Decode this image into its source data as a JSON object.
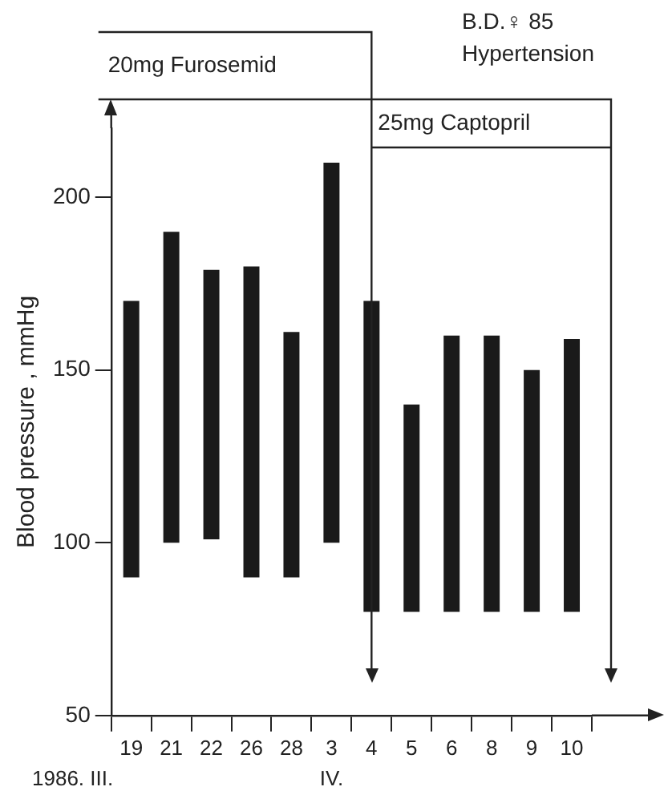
{
  "chart_data": {
    "type": "bar",
    "ylabel": "Blood pressure , mmHg",
    "categories": [
      "19",
      "21",
      "22",
      "26",
      "28",
      "3",
      "4",
      "5",
      "6",
      "8",
      "9",
      "10"
    ],
    "values": [
      80,
      90,
      78,
      90,
      71,
      110,
      90,
      60,
      80,
      80,
      70,
      79
    ],
    "base": [
      90,
      100,
      101,
      90,
      90,
      100,
      80,
      80,
      80,
      80,
      80,
      80
    ],
    "color": "#1a1a1a",
    "ylim": [
      50,
      220
    ],
    "yticks": [
      50,
      100,
      150,
      200
    ],
    "grid": false,
    "legend": false,
    "ref_lines": [
      {
        "axis": "x",
        "value": "4",
        "label": "25mg Captopril"
      }
    ],
    "annotations": [
      "B.D.♀ 85",
      "Hypertension",
      "20mg Furosemid",
      "1986. III.",
      "IV."
    ]
  }
}
